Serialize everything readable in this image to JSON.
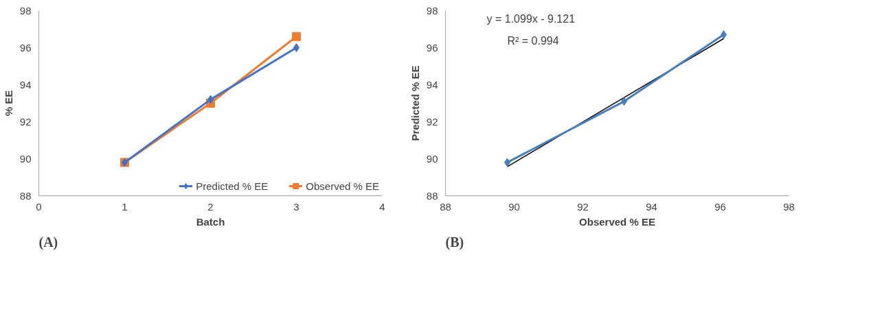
{
  "chart_data": [
    {
      "type": "line",
      "xlabel": "Batch",
      "ylabel": "% EE",
      "x": [
        1,
        2,
        3
      ],
      "xlim": [
        0,
        4
      ],
      "xticks": [
        0,
        1,
        2,
        3,
        4
      ],
      "ylim": [
        88,
        98
      ],
      "yticks": [
        88,
        90,
        92,
        94,
        96,
        98
      ],
      "grid": false,
      "legend": "bottom",
      "annotations": [
        "(A)"
      ],
      "series": [
        {
          "name": "Predicted % EE",
          "color": "#4472c4",
          "marker": "diamond",
          "values": [
            89.8,
            93.2,
            96.0
          ]
        },
        {
          "name": "Observed % EE",
          "color": "#ed7d31",
          "marker": "square",
          "values": [
            89.8,
            93.0,
            96.6
          ]
        }
      ]
    },
    {
      "type": "line",
      "xlabel": "Observed % EE",
      "ylabel": "Predicted % EE",
      "xlim": [
        88,
        98
      ],
      "xticks": [
        88,
        90,
        92,
        94,
        96,
        98
      ],
      "ylim": [
        88,
        98
      ],
      "yticks": [
        88,
        90,
        92,
        94,
        96,
        98
      ],
      "grid": false,
      "annotations": [
        "y = 1.099x - 9.121",
        "R² = 0.994",
        "(B)"
      ],
      "series": [
        {
          "color": "#4a7ebb",
          "marker": "diamond",
          "x": [
            89.8,
            93.2,
            96.1
          ],
          "values": [
            89.8,
            93.1,
            96.7
          ]
        },
        {
          "type": "line",
          "color": "#000000",
          "marker": "none",
          "x": [
            89.8,
            96.1
          ],
          "values": [
            89.57,
            96.49
          ]
        }
      ]
    }
  ]
}
